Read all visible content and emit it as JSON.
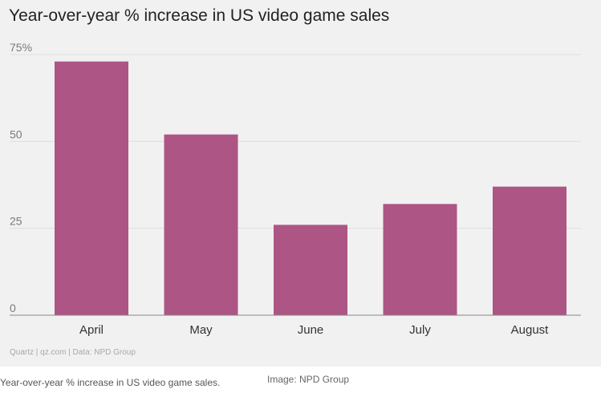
{
  "chart_data": {
    "type": "bar",
    "title": "Year-over-year % increase in US video game sales",
    "categories": [
      "April",
      "May",
      "June",
      "July",
      "August"
    ],
    "values": [
      73,
      52,
      26,
      32,
      37
    ],
    "ylim": [
      0,
      75
    ],
    "yticks": [
      0,
      25,
      50,
      75
    ],
    "ytick_labels": [
      "0",
      "25",
      "50",
      "75%"
    ],
    "xlabel": "",
    "ylabel": "",
    "grid": true,
    "bar_color": "#ad5585",
    "grid_color": "#dddddd",
    "axis_color": "#888888"
  },
  "source_line": "Quartz | qz.com | Data: NPD Group",
  "caption": "Year-over-year % increase in US video game sales.",
  "credit": "Image: NPD Group"
}
